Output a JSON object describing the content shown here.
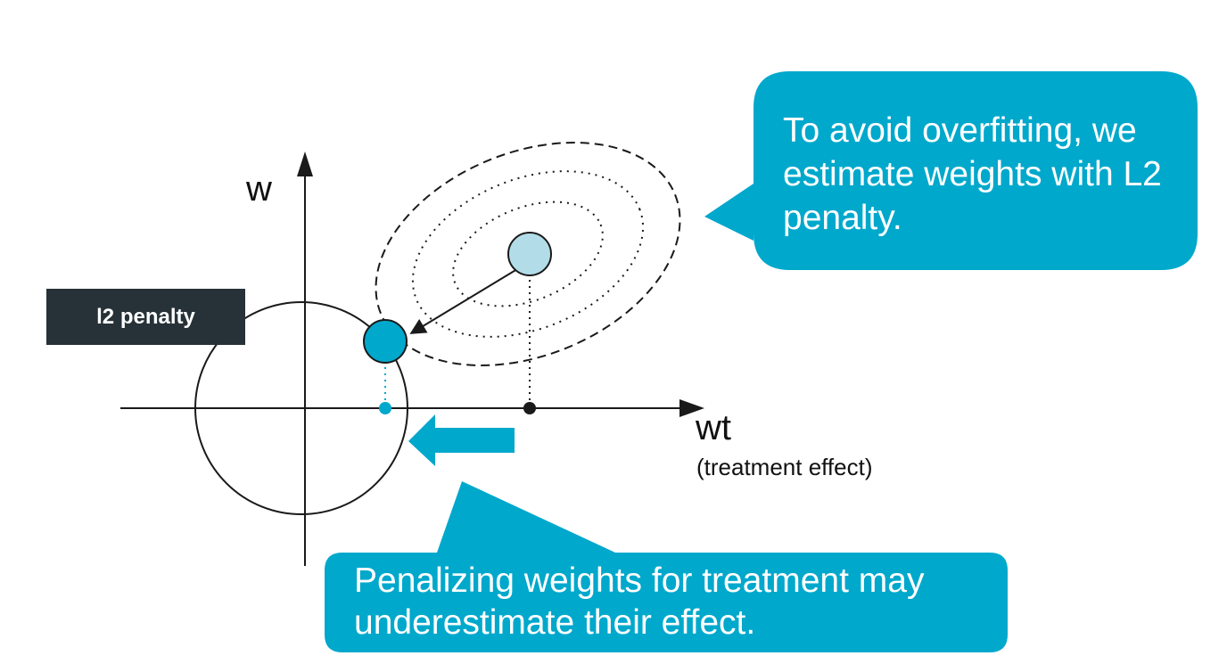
{
  "diagram": {
    "axes": {
      "y_label": "w",
      "x_label": "wt",
      "x_sublabel": "(treatment effect)"
    },
    "penalty_label": "l2 penalty",
    "callouts": {
      "top": "To avoid overfitting, we estimate weights with L2 penalty.",
      "bottom": "Penalizing weights for treatment may underestimate their effect."
    },
    "colors": {
      "accent": "#00a8cc",
      "estimate_fill": "#b2dde8",
      "dark": "#1a1a1a",
      "label_box": "#263238",
      "white": "#ffffff"
    }
  }
}
